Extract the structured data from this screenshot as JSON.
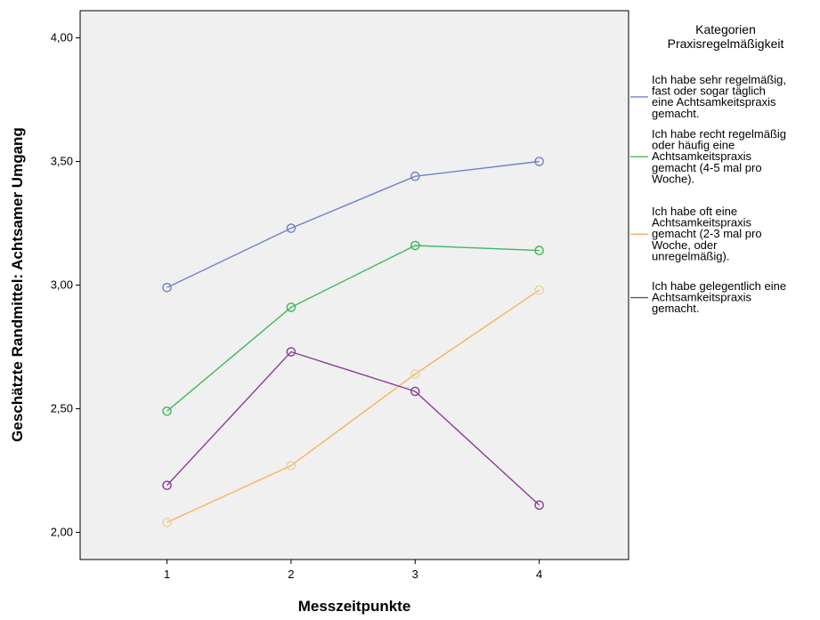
{
  "chart_data": {
    "type": "line",
    "xlabel": "Messzeitpunkte",
    "ylabel": "Geschätzte Randmittel: Achtsamer Umgang",
    "categories": [
      "1",
      "2",
      "3",
      "4"
    ],
    "y_tick_labels": [
      "2,00",
      "2,50",
      "3,00",
      "3,50",
      "4,00"
    ],
    "y_ticks": [
      2.0,
      2.5,
      3.0,
      3.5,
      4.0
    ],
    "ylim": [
      1.89,
      4.11
    ],
    "xlim": [
      0.3,
      4.72
    ],
    "grid": false,
    "plot_background": "#f0f0f0",
    "legend_position": "right",
    "legend_title": [
      "Kategorien",
      "Praxisregelmäßigkeit"
    ],
    "series": [
      {
        "name": "Ich habe sehr regelmäßig, fast oder sogar täglich eine Achtsamkeitspraxis gemacht.",
        "legend_lines": [
          "Ich habe sehr regelmäßig,",
          "fast oder sogar täglich",
          "eine Achtsamkeitspraxis",
          "gemacht."
        ],
        "color": "#6f82c8",
        "values": [
          2.99,
          3.23,
          3.44,
          3.5
        ]
      },
      {
        "name": "Ich habe recht regelmäßig oder häufig eine Achtsamkeitspraxis gemacht (4-5 mal pro Woche).",
        "legend_lines": [
          "Ich habe recht regelmäßig",
          "oder häufig eine",
          "Achtsamkeitspraxis",
          "gemacht (4-5 mal pro",
          "Woche)."
        ],
        "color": "#3fb85a",
        "values": [
          2.49,
          2.91,
          3.16,
          3.14
        ]
      },
      {
        "name": "Ich habe oft eine Achtsamkeitspraxis gemacht (2-3 mal pro Woche, oder unregelmäßig).",
        "legend_lines": [
          "Ich habe oft eine",
          "Achtsamkeitspraxis",
          "gemacht (2-3 mal pro",
          "Woche, oder",
          "unregelmäßig)."
        ],
        "color": "#f9b25a",
        "marker_color": "#ead39b",
        "values": [
          2.04,
          2.27,
          2.64,
          2.98
        ]
      },
      {
        "name": "Ich habe gelegentlich eine Achtsamkeitspraxis gemacht.",
        "legend_lines": [
          "Ich habe gelegentlich eine",
          "Achtsamkeitspraxis",
          "gemacht."
        ],
        "color": "#8a3d96",
        "values": [
          2.19,
          2.73,
          2.57,
          2.11
        ]
      }
    ]
  }
}
